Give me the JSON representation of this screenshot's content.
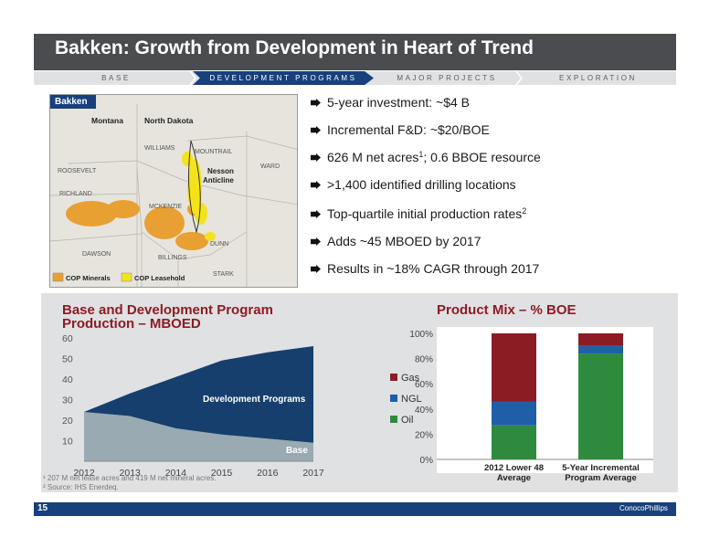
{
  "title": "Bakken: Growth from Development in Heart of Trend",
  "nav": [
    "BASE",
    "DEVELOPMENT PROGRAMS",
    "MAJOR PROJECTS",
    "EXPLORATION"
  ],
  "map": {
    "title": "Bakken",
    "states": [
      "Montana",
      "North Dakota"
    ],
    "counties": [
      "WILLIAMS",
      "MOUNTRAIL",
      "WARD",
      "ROOSEVELT",
      "RICHLAND",
      "MCKENZIE",
      "DUNN",
      "DAWSON",
      "BILLINGS",
      "STARK"
    ],
    "feature": "Nesson Anticline",
    "legend": [
      "COP Minerals",
      "COP Leasehold"
    ],
    "colors": {
      "minerals": "#e8a033",
      "leasehold": "#f4e21c"
    }
  },
  "bullets": [
    {
      "text": "5-year investment: ~$4 B",
      "sup": ""
    },
    {
      "text": "Incremental F&D: ~$20/BOE",
      "sup": ""
    },
    {
      "text": "626 M net acres",
      "sup": "1",
      "rest": "; 0.6 BBOE resource"
    },
    {
      "text": ">1,400 identified drilling locations",
      "sup": ""
    },
    {
      "text": "Top-quartile initial production rates",
      "sup": "2"
    },
    {
      "text": "Adds ~45 MBOED by 2017",
      "sup": ""
    },
    {
      "text": "Results in ~18% CAGR through 2017",
      "sup": ""
    }
  ],
  "chart_data": [
    {
      "type": "area",
      "title": "Base and Development Program Production – MBOED",
      "x": [
        2012,
        2013,
        2014,
        2015,
        2016,
        2017
      ],
      "series": [
        {
          "name": "Base",
          "values": [
            24,
            22,
            16,
            13,
            11,
            9
          ],
          "color": "#9aaab2"
        },
        {
          "name": "Development Programs",
          "values": [
            0,
            11,
            25,
            36,
            42,
            47
          ],
          "color": "#163f6e"
        }
      ],
      "yticks": [
        10,
        20,
        30,
        40,
        50,
        60
      ],
      "ylim": [
        0,
        60
      ]
    },
    {
      "type": "bar",
      "title": "Product Mix – % BOE",
      "categories": [
        "2012 Lower 48 Average",
        "5-Year Incremental Program Average"
      ],
      "series": [
        {
          "name": "Oil",
          "values": [
            27,
            84
          ],
          "color": "#2e8b3d"
        },
        {
          "name": "NGL",
          "values": [
            19,
            6
          ],
          "color": "#1f5fa8"
        },
        {
          "name": "Gas",
          "values": [
            54,
            10
          ],
          "color": "#8c1c24"
        }
      ],
      "yticks": [
        "0%",
        "20%",
        "40%",
        "60%",
        "80%",
        "100%"
      ],
      "ylim": [
        0,
        100
      ],
      "legend": "left"
    }
  ],
  "footnotes": [
    "¹ 207 M net lease acres and 419 M net mineral acres.",
    "² Source: IHS Enerdeq."
  ],
  "page_number": "15",
  "logo": "ConocoPhillips"
}
